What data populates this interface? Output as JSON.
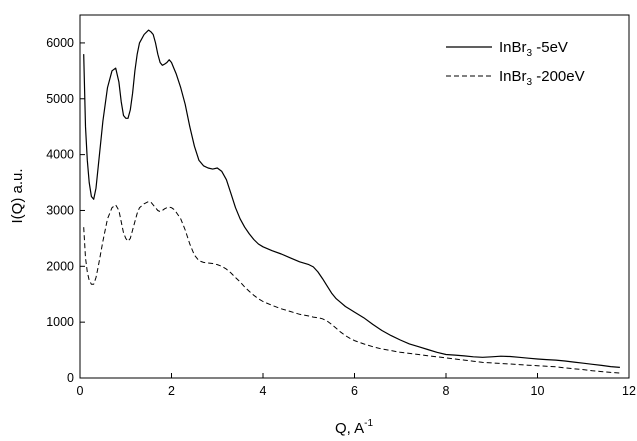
{
  "chart_data": {
    "type": "line",
    "title": "",
    "xlabel": "Q, A",
    "xlabel_superscript": "-1",
    "ylabel": "I(Q) a.u.",
    "xlim": [
      0,
      12
    ],
    "ylim": [
      0,
      6500
    ],
    "x_ticks": [
      0,
      2,
      4,
      6,
      8,
      10,
      12
    ],
    "y_ticks": [
      0,
      1000,
      2000,
      3000,
      4000,
      5000,
      6000
    ],
    "grid": false,
    "legend_position": "top-right",
    "series": [
      {
        "name_parts": [
          "InBr",
          "3",
          " -5eV"
        ],
        "style": "solid",
        "color": "#000000",
        "x": [
          0.08,
          0.12,
          0.16,
          0.2,
          0.25,
          0.3,
          0.35,
          0.4,
          0.5,
          0.6,
          0.7,
          0.78,
          0.85,
          0.9,
          0.95,
          1.0,
          1.05,
          1.1,
          1.15,
          1.2,
          1.25,
          1.3,
          1.4,
          1.5,
          1.55,
          1.6,
          1.65,
          1.7,
          1.75,
          1.8,
          1.85,
          1.9,
          1.95,
          2.0,
          2.05,
          2.1,
          2.2,
          2.3,
          2.4,
          2.5,
          2.6,
          2.7,
          2.8,
          2.9,
          3.0,
          3.1,
          3.2,
          3.3,
          3.4,
          3.5,
          3.6,
          3.7,
          3.8,
          3.9,
          4.0,
          4.2,
          4.4,
          4.6,
          4.8,
          5.0,
          5.1,
          5.2,
          5.3,
          5.4,
          5.5,
          5.6,
          5.7,
          5.8,
          5.9,
          6.0,
          6.2,
          6.4,
          6.6,
          6.8,
          7.0,
          7.2,
          7.4,
          7.6,
          7.8,
          8.0,
          8.2,
          8.4,
          8.6,
          8.8,
          9.0,
          9.2,
          9.4,
          9.6,
          9.8,
          10.0,
          10.2,
          10.4,
          10.6,
          10.8,
          11.0,
          11.2,
          11.4,
          11.6,
          11.8
        ],
        "y": [
          5800,
          4500,
          3900,
          3500,
          3250,
          3200,
          3400,
          3800,
          4600,
          5200,
          5500,
          5550,
          5300,
          4950,
          4700,
          4650,
          4650,
          4800,
          5100,
          5500,
          5800,
          6000,
          6150,
          6230,
          6200,
          6150,
          6000,
          5800,
          5650,
          5600,
          5620,
          5650,
          5700,
          5650,
          5550,
          5450,
          5200,
          4900,
          4500,
          4150,
          3900,
          3800,
          3760,
          3740,
          3760,
          3700,
          3550,
          3300,
          3050,
          2850,
          2700,
          2580,
          2480,
          2400,
          2350,
          2280,
          2220,
          2150,
          2080,
          2030,
          1990,
          1900,
          1780,
          1650,
          1520,
          1420,
          1350,
          1280,
          1230,
          1180,
          1080,
          960,
          850,
          760,
          680,
          610,
          560,
          510,
          460,
          420,
          410,
          395,
          380,
          370,
          380,
          390,
          385,
          370,
          355,
          340,
          330,
          320,
          305,
          285,
          265,
          245,
          225,
          205,
          190
        ]
      },
      {
        "name_parts": [
          "InBr",
          "3",
          " -200eV"
        ],
        "style": "dashed",
        "color": "#000000",
        "x": [
          0.08,
          0.12,
          0.16,
          0.2,
          0.25,
          0.3,
          0.35,
          0.4,
          0.5,
          0.6,
          0.7,
          0.78,
          0.85,
          0.9,
          0.95,
          1.0,
          1.05,
          1.1,
          1.15,
          1.2,
          1.25,
          1.3,
          1.4,
          1.5,
          1.55,
          1.6,
          1.65,
          1.7,
          1.75,
          1.8,
          1.85,
          1.9,
          1.95,
          2.0,
          2.05,
          2.1,
          2.2,
          2.3,
          2.4,
          2.5,
          2.6,
          2.7,
          2.8,
          2.9,
          3.0,
          3.1,
          3.2,
          3.3,
          3.4,
          3.5,
          3.6,
          3.7,
          3.8,
          3.9,
          4.0,
          4.2,
          4.4,
          4.6,
          4.8,
          5.0,
          5.1,
          5.2,
          5.3,
          5.4,
          5.5,
          5.6,
          5.7,
          5.8,
          5.9,
          6.0,
          6.2,
          6.4,
          6.6,
          6.8,
          7.0,
          7.2,
          7.4,
          7.6,
          7.8,
          8.0,
          8.2,
          8.4,
          8.6,
          8.8,
          9.0,
          9.2,
          9.4,
          9.6,
          9.8,
          10.0,
          10.2,
          10.4,
          10.6,
          10.8,
          11.0,
          11.2,
          11.4,
          11.6,
          11.8
        ],
        "y": [
          2700,
          2150,
          1900,
          1750,
          1680,
          1680,
          1800,
          2000,
          2450,
          2850,
          3050,
          3100,
          3000,
          2800,
          2600,
          2500,
          2450,
          2500,
          2650,
          2800,
          2950,
          3050,
          3120,
          3160,
          3150,
          3100,
          3050,
          3000,
          2980,
          3000,
          3030,
          3050,
          3060,
          3050,
          3020,
          2970,
          2850,
          2650,
          2400,
          2200,
          2100,
          2070,
          2060,
          2050,
          2030,
          2000,
          1950,
          1880,
          1800,
          1720,
          1630,
          1550,
          1480,
          1420,
          1370,
          1300,
          1240,
          1190,
          1140,
          1110,
          1090,
          1080,
          1060,
          1020,
          960,
          890,
          820,
          760,
          710,
          670,
          610,
          560,
          520,
          490,
          460,
          440,
          420,
          400,
          380,
          360,
          340,
          320,
          300,
          280,
          270,
          260,
          250,
          240,
          230,
          220,
          210,
          200,
          180,
          165,
          150,
          130,
          115,
          100,
          90
        ]
      }
    ]
  }
}
